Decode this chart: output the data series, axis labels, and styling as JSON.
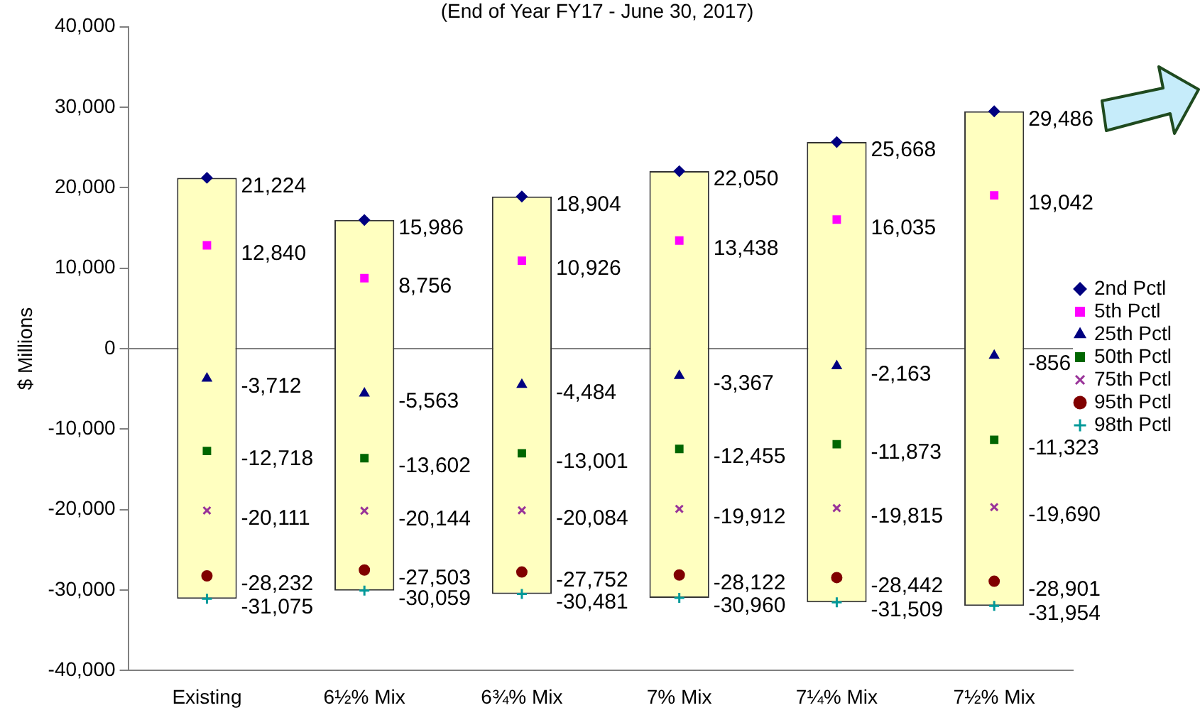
{
  "chart_data": {
    "type": "scatter",
    "subtitle": "(End of Year FY17 - June 30, 2017)",
    "ylabel": "$ Millions",
    "categories": [
      "Existing",
      "6½% Mix",
      "6¾% Mix",
      "7% Mix",
      "7¼% Mix",
      "7½% Mix"
    ],
    "ylim": [
      -40000,
      40000
    ],
    "yticks": [
      {
        "value": -40000,
        "label": "-40,000"
      },
      {
        "value": -30000,
        "label": "-30,000"
      },
      {
        "value": -20000,
        "label": "-20,000"
      },
      {
        "value": -10000,
        "label": "-10,000"
      },
      0,
      {
        "value": 10000,
        "label": "10,000"
      },
      {
        "value": 20000,
        "label": "20,000"
      },
      {
        "value": 30000,
        "label": "30,000"
      },
      {
        "value": 40000,
        "label": "40,000"
      }
    ],
    "grid": false,
    "legend": "right",
    "ref_lines": [
      {
        "axis": "y",
        "value": 0,
        "color": "#808080"
      }
    ],
    "series": [
      {
        "type": "bar",
        "color": "#ffffc0",
        "base": [
          -31075,
          -30059,
          -30481,
          -30960,
          -31509,
          -31954
        ],
        "values": [
          52299,
          46045,
          49385,
          53010,
          57177,
          61440
        ]
      },
      {
        "name": "2nd Pctl",
        "color": "#000080",
        "marker": "diamond",
        "values": [
          21224,
          15986,
          18904,
          22050,
          25668,
          29486
        ],
        "value_labels": [
          "21,224",
          "15,986",
          "18,904",
          "22,050",
          "25,668",
          "29,486"
        ]
      },
      {
        "name": "5th Pctl",
        "color": "#ff00ff",
        "marker": "square",
        "values": [
          12840,
          8756,
          10926,
          13438,
          16035,
          19042
        ],
        "value_labels": [
          "12,840",
          "8,756",
          "10,926",
          "13,438",
          "16,035",
          "19,042"
        ]
      },
      {
        "name": "25th Pctl",
        "color": "#000080",
        "marker": "triangle",
        "values": [
          -3712,
          -5563,
          -4484,
          -3367,
          -2163,
          -856
        ],
        "value_labels": [
          "-3,712",
          "-5,563",
          "-4,484",
          "-3,367",
          "-2,163",
          "-856"
        ]
      },
      {
        "name": "50th Pctl",
        "color": "#006600",
        "marker": "square",
        "values": [
          -12718,
          -13602,
          -13001,
          -12455,
          -11873,
          -11323
        ],
        "value_labels": [
          "-12,718",
          "-13,602",
          "-13,001",
          "-12,455",
          "-11,873",
          "-11,323"
        ]
      },
      {
        "name": "75th Pctl",
        "color": "#993399",
        "marker": "x",
        "values": [
          -20111,
          -20144,
          -20084,
          -19912,
          -19815,
          -19690
        ],
        "value_labels": [
          "-20,111",
          "-20,144",
          "-20,084",
          "-19,912",
          "-19,815",
          "-19,690"
        ]
      },
      {
        "name": "95th Pctl",
        "color": "#800000",
        "marker": "circle",
        "values": [
          -28232,
          -27503,
          -27752,
          -28122,
          -28442,
          -28901
        ],
        "value_labels": [
          "-28,232",
          "-27,503",
          "-27,752",
          "-28,122",
          "-28,442",
          "-28,901"
        ]
      },
      {
        "name": "98th Pctl",
        "color": "#009999",
        "marker": "plus",
        "values": [
          -31075,
          -30059,
          -30481,
          -30960,
          -31509,
          -31954
        ],
        "value_labels": [
          "-31,075",
          "-30,059",
          "-30,481",
          "-30,960",
          "-31,509",
          "-31,954"
        ]
      }
    ]
  }
}
